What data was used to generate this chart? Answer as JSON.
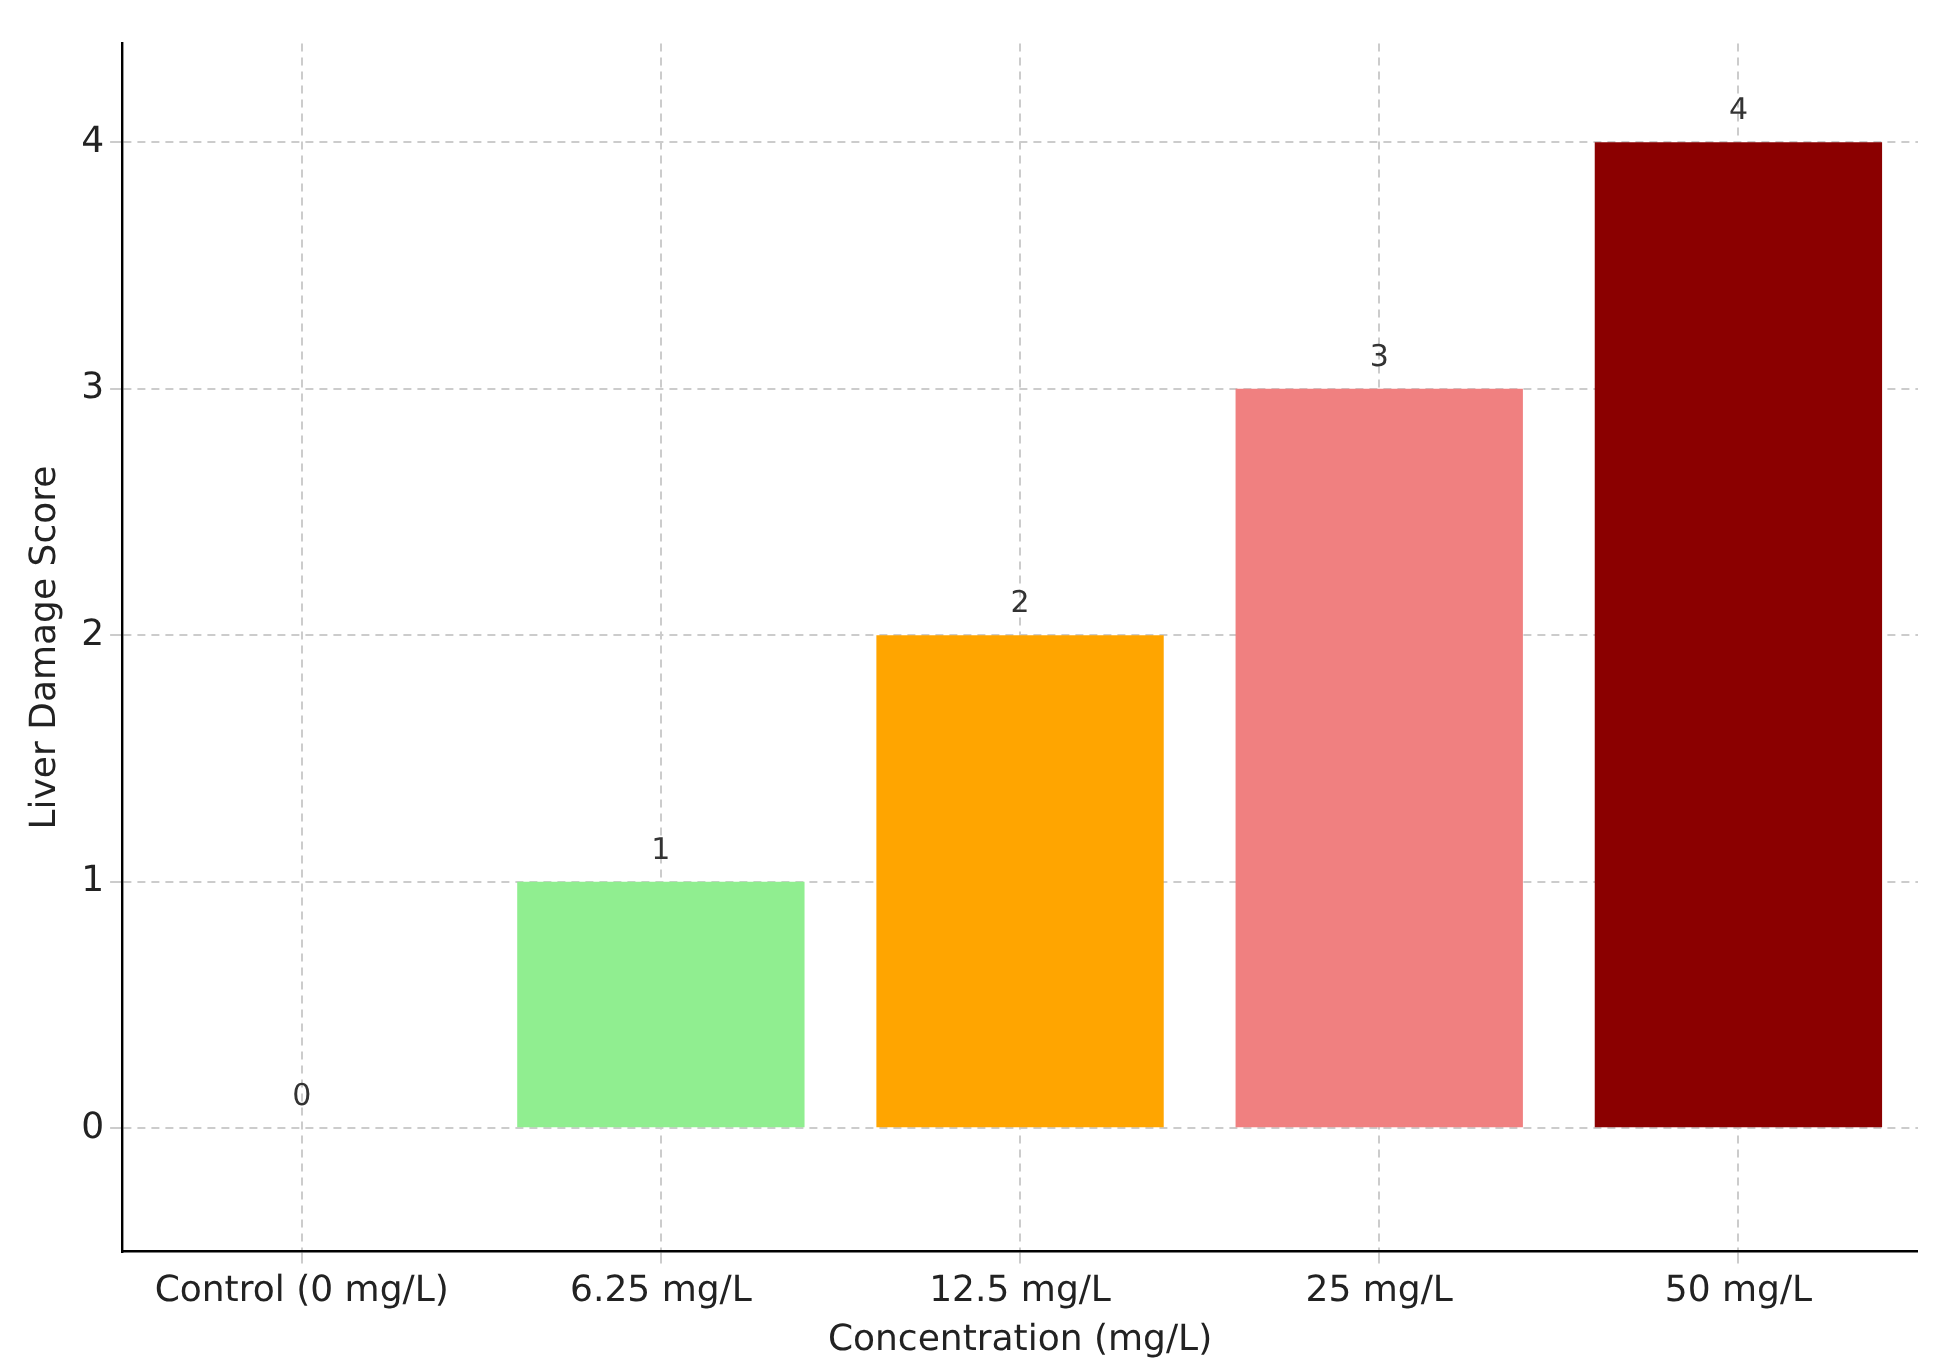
{
  "chart_data": {
    "type": "bar",
    "categories": [
      "Control (0 mg/L)",
      "6.25 mg/L",
      "12.5 mg/L",
      "25 mg/L",
      "50 mg/L"
    ],
    "values": [
      0,
      1,
      2,
      3,
      4
    ],
    "colors": [
      "#d3d3d3",
      "#90ee90",
      "#ffa500",
      "#f08080",
      "#8b0000"
    ],
    "xlabel": "Concentration (mg/L)",
    "ylabel": "Liver Damage Score",
    "ylim": [
      -0.5,
      4.4
    ],
    "yticks": [
      0,
      1,
      2,
      3,
      4
    ],
    "grid": true,
    "data_labels": true,
    "legend": false
  }
}
